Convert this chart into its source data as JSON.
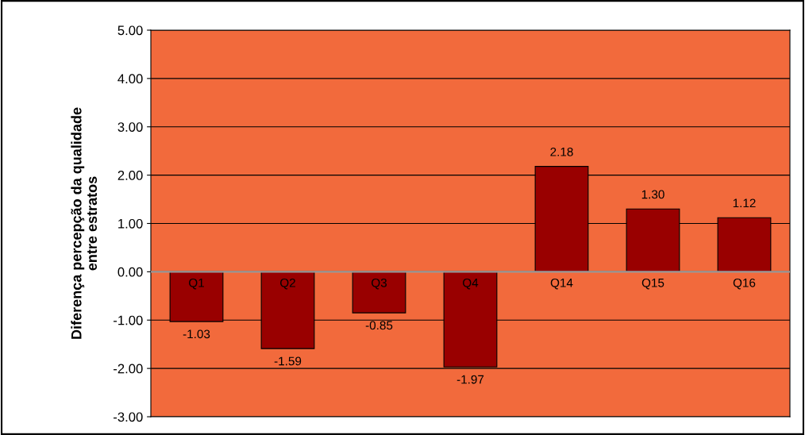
{
  "chart_data": {
    "type": "bar",
    "ylabel": "Diferença percepção da qualidade\nentre estratos",
    "categories": [
      "Q1",
      "Q2",
      "Q3",
      "Q4",
      "Q14",
      "Q15",
      "Q16"
    ],
    "values": [
      -1.03,
      -1.59,
      -0.85,
      -1.97,
      2.18,
      1.3,
      1.12
    ],
    "color": "#990000",
    "ylim": [
      -3,
      5
    ],
    "yticks": [
      {
        "value": -3,
        "label": "-3.00"
      },
      {
        "value": -2,
        "label": "-2.00"
      },
      {
        "value": -1,
        "label": "-1.00"
      },
      {
        "value": 0,
        "label": "0.00"
      },
      {
        "value": 1,
        "label": "1.00"
      },
      {
        "value": 2,
        "label": "2.00"
      },
      {
        "value": 3,
        "label": "3.00"
      },
      {
        "value": 4,
        "label": "4.00"
      },
      {
        "value": 5,
        "label": "5.00"
      }
    ],
    "grid": "y",
    "value_labels": [
      "-1.03",
      "-1.59",
      "-0.85",
      "-1.97",
      "2.18",
      "1.30",
      "1.12"
    ]
  }
}
